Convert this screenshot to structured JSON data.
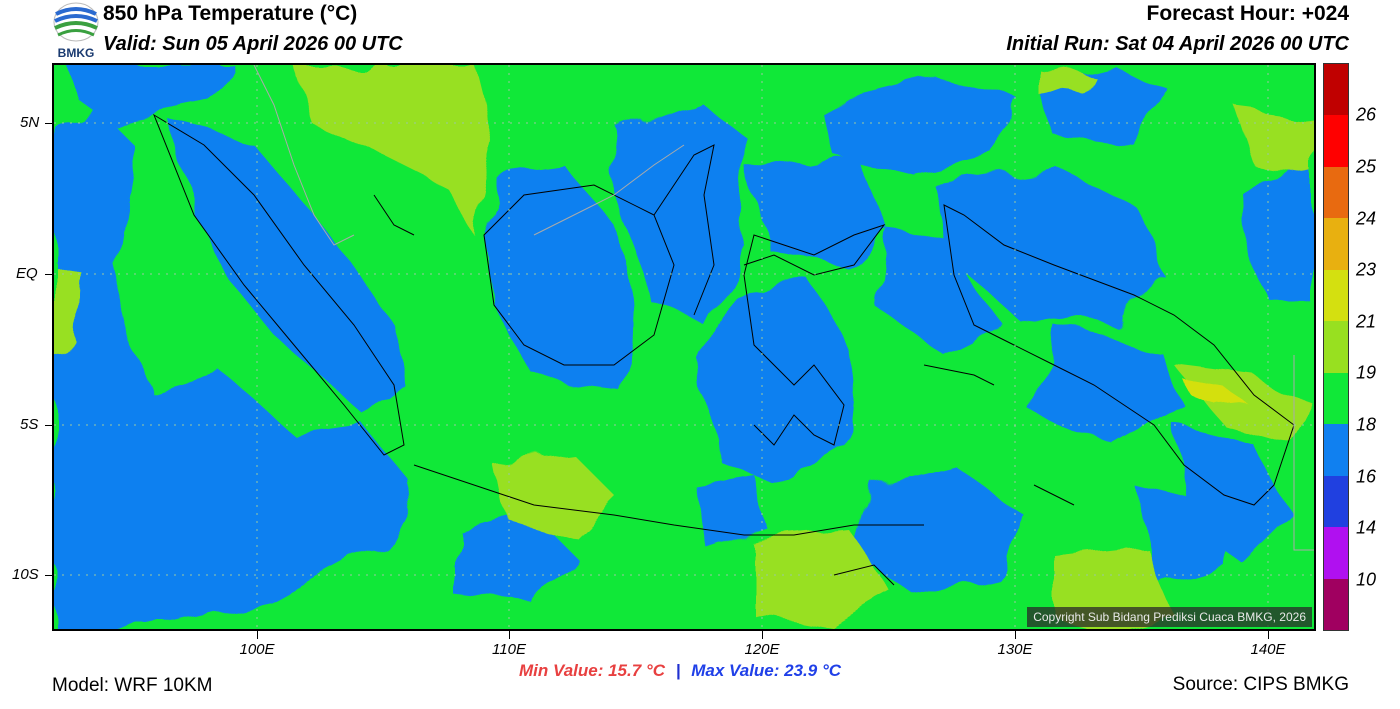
{
  "header": {
    "logo_text": "BMKG",
    "title": "850 hPa Temperature (°C)",
    "valid": "Valid: Sun 05 April 2026 00 UTC",
    "forecast_hour": "Forecast Hour: +024",
    "initial_run": "Initial Run: Sat 04 April 2026 00 UTC"
  },
  "map": {
    "lat_labels": [
      "5N",
      "EQ",
      "5S",
      "10S"
    ],
    "lon_labels": [
      "100E",
      "110E",
      "120E",
      "130E",
      "140E"
    ],
    "copyright": "Copyright Sub Bidang Prediksi Cuaca BMKG, 2026"
  },
  "colorbar": {
    "labels": [
      "26",
      "25",
      "24",
      "23",
      "21",
      "19",
      "18",
      "16",
      "14",
      "10"
    ],
    "colors": [
      "#c00000",
      "#ff0000",
      "#e86a10",
      "#e8b010",
      "#d4e010",
      "#98e020",
      "#10e838",
      "#1080f0",
      "#2040e0",
      "#b010f0",
      "#a00060"
    ]
  },
  "footer": {
    "min_value": "Min Value: 15.7 °C",
    "separator": "|",
    "max_value": "Max Value: 23.9 °C",
    "model": "Model: WRF 10KM",
    "source": "Source: CIPS BMKG"
  }
}
